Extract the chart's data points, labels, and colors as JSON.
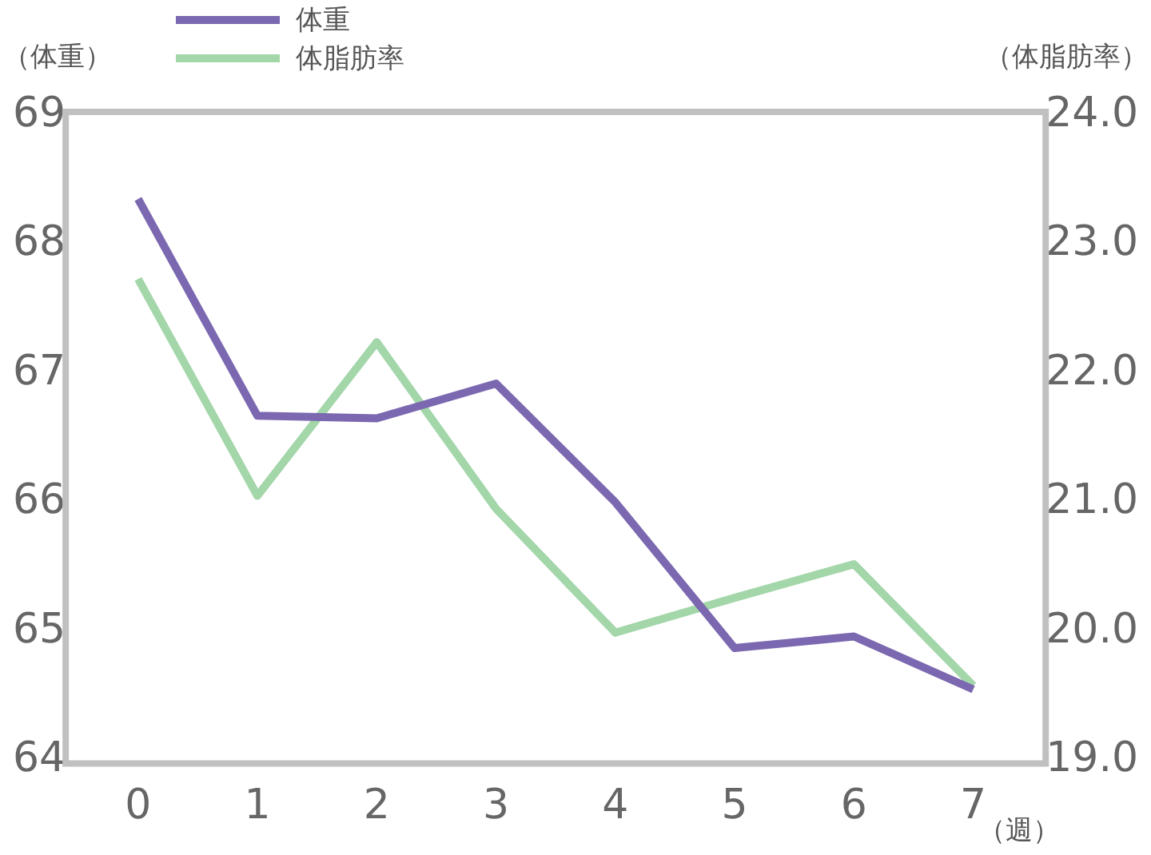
{
  "chart_data": {
    "type": "line",
    "ylabel": "（体重）",
    "y2label": "（体脂肪率）",
    "xlabel": "（週）",
    "categories": [
      "0",
      "1",
      "2",
      "3",
      "4",
      "5",
      "6",
      "7"
    ],
    "series": [
      {
        "name": "体重",
        "color": "#7b68b0",
        "values": [
          68.35,
          66.67,
          66.65,
          66.92,
          66.0,
          64.87,
          64.96,
          64.55
        ]
      },
      {
        "name": "体脂肪率",
        "color": "#a3d6a9",
        "axis": "y2",
        "values": [
          22.73,
          21.05,
          22.24,
          20.95,
          19.99,
          20.26,
          20.52,
          19.58
        ]
      }
    ],
    "ylim": [
      64,
      69
    ],
    "yticks": [
      64,
      65,
      66,
      67,
      68,
      69
    ],
    "y2lim": [
      19,
      24
    ],
    "y2ticks": [
      {
        "value": 19,
        "label": "19.0"
      },
      {
        "value": 20,
        "label": "20.0"
      },
      {
        "value": 21,
        "label": "21.0"
      },
      {
        "value": 22,
        "label": "22.0"
      },
      {
        "value": 23,
        "label": "23.0"
      },
      {
        "value": 24,
        "label": "24.0"
      }
    ],
    "grid": false,
    "legend": "top",
    "marker": "none",
    "line_style": "solid"
  }
}
